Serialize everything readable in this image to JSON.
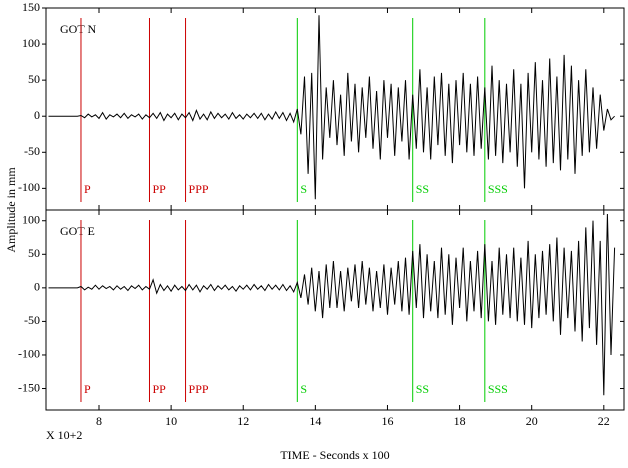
{
  "chart_data": [
    {
      "type": "line",
      "label": "GOT  N",
      "ylabel": "Amplitude in mm",
      "xlim": [
        6.53,
        22.56
      ],
      "ylim": [
        -130,
        150
      ],
      "yticks": [
        150,
        100,
        50,
        0,
        -50,
        -100
      ],
      "phases": [
        {
          "label": "P",
          "x": 7.5,
          "color": "#cc0000"
        },
        {
          "label": "PP",
          "x": 9.4,
          "color": "#cc0000"
        },
        {
          "label": "PPP",
          "x": 10.4,
          "color": "#cc0000"
        },
        {
          "label": "S",
          "x": 13.5,
          "color": "#00cc00"
        },
        {
          "label": "SS",
          "x": 16.7,
          "color": "#00cc00"
        },
        {
          "label": "SSS",
          "x": 18.7,
          "color": "#00cc00"
        }
      ],
      "x": [
        6.6,
        6.7,
        6.8,
        6.9,
        7.0,
        7.1,
        7.2,
        7.3,
        7.4,
        7.5,
        7.6,
        7.7,
        7.8,
        7.9,
        8.0,
        8.1,
        8.2,
        8.3,
        8.4,
        8.5,
        8.6,
        8.7,
        8.8,
        8.9,
        9.0,
        9.1,
        9.2,
        9.3,
        9.4,
        9.5,
        9.6,
        9.7,
        9.8,
        9.9,
        10.0,
        10.1,
        10.2,
        10.3,
        10.4,
        10.5,
        10.6,
        10.7,
        10.8,
        10.9,
        11.0,
        11.1,
        11.2,
        11.3,
        11.4,
        11.5,
        11.6,
        11.7,
        11.8,
        11.9,
        12.0,
        12.1,
        12.2,
        12.3,
        12.4,
        12.5,
        12.6,
        12.7,
        12.8,
        12.9,
        13.0,
        13.1,
        13.2,
        13.3,
        13.4,
        13.5,
        13.6,
        13.7,
        13.8,
        13.9,
        14.0,
        14.1,
        14.2,
        14.3,
        14.4,
        14.5,
        14.6,
        14.7,
        14.8,
        14.9,
        15.0,
        15.1,
        15.2,
        15.3,
        15.4,
        15.5,
        15.6,
        15.7,
        15.8,
        15.9,
        16.0,
        16.1,
        16.2,
        16.3,
        16.4,
        16.5,
        16.6,
        16.7,
        16.8,
        16.9,
        17.0,
        17.1,
        17.2,
        17.3,
        17.4,
        17.5,
        17.6,
        17.7,
        17.8,
        17.9,
        18.0,
        18.1,
        18.2,
        18.3,
        18.4,
        18.5,
        18.6,
        18.7,
        18.8,
        18.9,
        19.0,
        19.1,
        19.2,
        19.3,
        19.4,
        19.5,
        19.6,
        19.7,
        19.8,
        19.9,
        20.0,
        20.1,
        20.2,
        20.3,
        20.4,
        20.5,
        20.6,
        20.7,
        20.8,
        20.9,
        21.0,
        21.1,
        21.2,
        21.3,
        21.4,
        21.5,
        21.6,
        21.7,
        21.8,
        21.9,
        22.0,
        22.1,
        22.2,
        22.3
      ],
      "series": [
        {
          "color": "#000000",
          "values": [
            0,
            0,
            0,
            0,
            0,
            0,
            0,
            0,
            0,
            1,
            -2,
            3,
            -1,
            2,
            -3,
            5,
            -4,
            2,
            -1,
            3,
            -2,
            4,
            -3,
            2,
            -1,
            3,
            -4,
            2,
            -2,
            4,
            -3,
            5,
            -6,
            3,
            -2,
            4,
            -5,
            3,
            -2,
            5,
            -6,
            8,
            -4,
            3,
            -5,
            6,
            -3,
            4,
            -2,
            3,
            -4,
            5,
            -3,
            2,
            -4,
            3,
            -2,
            4,
            -3,
            4,
            -5,
            3,
            -4,
            6,
            -3,
            5,
            -6,
            4,
            -8,
            10,
            -25,
            55,
            -80,
            60,
            -115,
            140,
            -60,
            40,
            -30,
            50,
            -40,
            30,
            -55,
            60,
            -35,
            45,
            -50,
            40,
            -30,
            55,
            -45,
            35,
            -60,
            50,
            -30,
            45,
            -55,
            40,
            -35,
            50,
            -60,
            30,
            -45,
            65,
            -50,
            40,
            -60,
            55,
            -40,
            60,
            -55,
            45,
            -65,
            50,
            -40,
            60,
            -50,
            45,
            -55,
            55,
            -45,
            40,
            -60,
            70,
            -55,
            50,
            -65,
            45,
            -50,
            65,
            -70,
            45,
            -100,
            60,
            -50,
            75,
            -60,
            50,
            -70,
            80,
            -65,
            55,
            -75,
            85,
            -60,
            70,
            -80,
            50,
            -55,
            65,
            -50,
            40,
            -45,
            30,
            -20,
            10,
            -5,
            0
          ]
        }
      ]
    },
    {
      "type": "line",
      "label": "GOT  E",
      "xlabel": "TIME - Seconds x 100",
      "x_multiplier": "X 10+2",
      "xlim": [
        6.53,
        22.56
      ],
      "xticks": [
        8,
        10,
        12,
        14,
        16,
        18,
        20,
        22
      ],
      "ylim": [
        -182,
        116
      ],
      "yticks": [
        100,
        50,
        0,
        -50,
        -100,
        -150
      ],
      "phases": [
        {
          "label": "P",
          "x": 7.5,
          "color": "#cc0000"
        },
        {
          "label": "PP",
          "x": 9.4,
          "color": "#cc0000"
        },
        {
          "label": "PPP",
          "x": 10.4,
          "color": "#cc0000"
        },
        {
          "label": "S",
          "x": 13.5,
          "color": "#00cc00"
        },
        {
          "label": "SS",
          "x": 16.7,
          "color": "#00cc00"
        },
        {
          "label": "SSS",
          "x": 18.7,
          "color": "#00cc00"
        }
      ],
      "x": [
        6.6,
        6.7,
        6.8,
        6.9,
        7.0,
        7.1,
        7.2,
        7.3,
        7.4,
        7.5,
        7.6,
        7.7,
        7.8,
        7.9,
        8.0,
        8.1,
        8.2,
        8.3,
        8.4,
        8.5,
        8.6,
        8.7,
        8.8,
        8.9,
        9.0,
        9.1,
        9.2,
        9.3,
        9.4,
        9.5,
        9.6,
        9.7,
        9.8,
        9.9,
        10.0,
        10.1,
        10.2,
        10.3,
        10.4,
        10.5,
        10.6,
        10.7,
        10.8,
        10.9,
        11.0,
        11.1,
        11.2,
        11.3,
        11.4,
        11.5,
        11.6,
        11.7,
        11.8,
        11.9,
        12.0,
        12.1,
        12.2,
        12.3,
        12.4,
        12.5,
        12.6,
        12.7,
        12.8,
        12.9,
        13.0,
        13.1,
        13.2,
        13.3,
        13.4,
        13.5,
        13.6,
        13.7,
        13.8,
        13.9,
        14.0,
        14.1,
        14.2,
        14.3,
        14.4,
        14.5,
        14.6,
        14.7,
        14.8,
        14.9,
        15.0,
        15.1,
        15.2,
        15.3,
        15.4,
        15.5,
        15.6,
        15.7,
        15.8,
        15.9,
        16.0,
        16.1,
        16.2,
        16.3,
        16.4,
        16.5,
        16.6,
        16.7,
        16.8,
        16.9,
        17.0,
        17.1,
        17.2,
        17.3,
        17.4,
        17.5,
        17.6,
        17.7,
        17.8,
        17.9,
        18.0,
        18.1,
        18.2,
        18.3,
        18.4,
        18.5,
        18.6,
        18.7,
        18.8,
        18.9,
        19.0,
        19.1,
        19.2,
        19.3,
        19.4,
        19.5,
        19.6,
        19.7,
        19.8,
        19.9,
        20.0,
        20.1,
        20.2,
        20.3,
        20.4,
        20.5,
        20.6,
        20.7,
        20.8,
        20.9,
        21.0,
        21.1,
        21.2,
        21.3,
        21.4,
        21.5,
        21.6,
        21.7,
        21.8,
        21.9,
        22.0,
        22.1,
        22.2,
        22.3
      ],
      "series": [
        {
          "color": "#000000",
          "values": [
            0,
            0,
            0,
            0,
            0,
            0,
            0,
            0,
            0,
            2,
            -3,
            1,
            -2,
            4,
            -2,
            3,
            -1,
            2,
            -3,
            3,
            -2,
            2,
            -4,
            3,
            -1,
            4,
            -3,
            2,
            -2,
            12,
            -8,
            5,
            -4,
            3,
            -5,
            4,
            -3,
            2,
            -4,
            5,
            -3,
            4,
            -6,
            3,
            -2,
            5,
            -4,
            3,
            -2,
            4,
            -3,
            2,
            -5,
            3,
            -2,
            4,
            -3,
            5,
            -2,
            3,
            -4,
            5,
            -2,
            4,
            -3,
            5,
            -4,
            3,
            -6,
            8,
            -15,
            20,
            -25,
            30,
            -35,
            25,
            -45,
            35,
            -30,
            40,
            -30,
            25,
            -35,
            30,
            -20,
            35,
            -30,
            40,
            -25,
            30,
            -35,
            25,
            -30,
            35,
            -40,
            30,
            -25,
            40,
            -35,
            45,
            -40,
            55,
            -30,
            65,
            -45,
            50,
            -35,
            40,
            -45,
            60,
            -40,
            50,
            -55,
            45,
            -30,
            60,
            -50,
            40,
            -35,
            55,
            -45,
            65,
            -50,
            40,
            -55,
            60,
            -40,
            50,
            -45,
            60,
            -50,
            45,
            -55,
            70,
            -60,
            50,
            -45,
            55,
            -40,
            65,
            -50,
            75,
            -70,
            60,
            -45,
            55,
            -65,
            70,
            -80,
            90,
            -60,
            100,
            -85,
            70,
            -160,
            110,
            -100,
            60
          ]
        }
      ]
    }
  ]
}
